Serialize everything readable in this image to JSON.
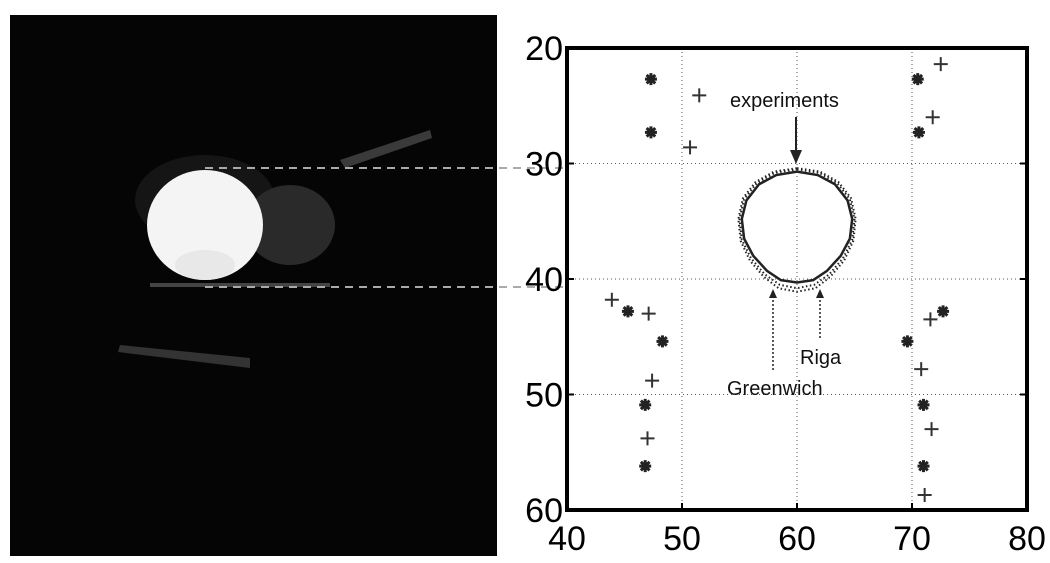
{
  "chart_data": {
    "type": "scatter",
    "xlim": [
      40,
      80
    ],
    "xticks": [
      40,
      50,
      60,
      70,
      80
    ],
    "ylim": [
      20,
      60
    ],
    "yticks": [
      20,
      30,
      40,
      50,
      60
    ],
    "y_reversed": true,
    "grid": true,
    "series": [
      {
        "marker": "star",
        "color": "#222222",
        "x": [
          47.3,
          47.3,
          45.3,
          48.3,
          46.8,
          46.8,
          70.5,
          70.6,
          72.7,
          69.6,
          71.0,
          71.0
        ],
        "y": [
          22.7,
          27.3,
          42.8,
          45.4,
          50.9,
          56.2,
          22.7,
          27.3,
          42.8,
          45.4,
          50.9,
          56.2
        ]
      },
      {
        "marker": "plus",
        "color": "#333333",
        "x": [
          51.5,
          50.7,
          43.9,
          47.1,
          47.4,
          47.0,
          72.5,
          71.8,
          71.6,
          70.8,
          71.7,
          71.1
        ],
        "y": [
          24.1,
          28.6,
          41.8,
          43.0,
          48.8,
          53.8,
          21.4,
          26.0,
          43.5,
          47.8,
          53.0,
          58.7
        ]
      },
      {
        "name": "experiments",
        "marker": "solid",
        "color": "#222222",
        "x": [
          60,
          61.8,
          63.3,
          64.4,
          64.8,
          64.6,
          63.8,
          62.6,
          61.4,
          60,
          58.6,
          57.4,
          56.2,
          55.4,
          55.2,
          55.6,
          56.7,
          58.2,
          60
        ],
        "y": [
          30.7,
          31.0,
          31.8,
          33.2,
          34.8,
          36.5,
          38.0,
          39.3,
          40.1,
          40.3,
          40.1,
          39.3,
          38.0,
          36.5,
          34.8,
          33.2,
          31.8,
          31.0,
          30.7
        ]
      },
      {
        "name": "Riga",
        "marker": "dotted",
        "color": "#222222",
        "x": [
          60,
          61.9,
          63.5,
          64.6,
          65.0,
          64.8,
          64.0,
          62.8,
          61.5,
          60,
          58.5,
          57.2,
          56.0,
          55.2,
          55.0,
          55.4,
          56.5,
          58.1,
          60
        ],
        "y": [
          30.5,
          30.8,
          31.7,
          33.1,
          34.8,
          36.6,
          38.2,
          39.6,
          40.5,
          40.8,
          40.5,
          39.6,
          38.2,
          36.6,
          34.8,
          33.1,
          31.7,
          30.8,
          30.5
        ]
      },
      {
        "name": "Greenwich",
        "marker": "dotted",
        "color": "#222222",
        "x": [
          60,
          62.0,
          63.6,
          64.7,
          65.1,
          64.9,
          64.1,
          62.9,
          61.6,
          60,
          58.4,
          57.1,
          55.9,
          55.1,
          54.9,
          55.3,
          56.4,
          58.0,
          60
        ],
        "y": [
          30.4,
          30.7,
          31.6,
          33.0,
          34.8,
          36.7,
          38.4,
          39.8,
          40.8,
          41.1,
          40.8,
          39.8,
          38.4,
          36.7,
          34.8,
          33.0,
          31.6,
          30.7,
          30.4
        ]
      }
    ]
  }
}
